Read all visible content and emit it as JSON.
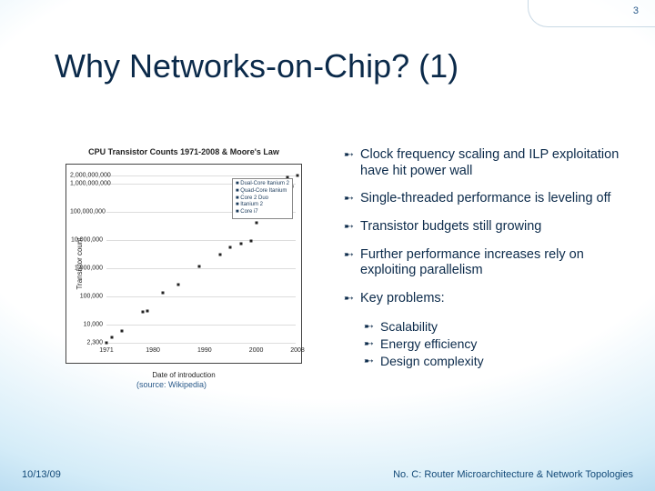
{
  "page_number": "3",
  "title": "Why Networks-on-Chip? (1)",
  "chart": {
    "type": "scatter",
    "title": "CPU Transistor Counts 1971-2008 & Moore's Law",
    "x_axis_label": "Date of introduction",
    "y_axis_label": "Transistor count",
    "x_ticks": [
      "1971",
      "1980",
      "1990",
      "2000",
      "2008"
    ],
    "y_ticks": [
      "2,300",
      "10,000",
      "100,000",
      "1,000,000",
      "10,000,000",
      "100,000,000",
      "1,000,000,000",
      "2,000,000,000"
    ],
    "y_log_min": 3.36,
    "y_log_max": 9.3,
    "x_min": 1971,
    "x_max": 2008,
    "points": [
      [
        1971,
        2300
      ],
      [
        1972,
        3500
      ],
      [
        1974,
        6000
      ],
      [
        1978,
        29000
      ],
      [
        1979,
        30000
      ],
      [
        1982,
        134000
      ],
      [
        1985,
        275000
      ],
      [
        1989,
        1180000
      ],
      [
        1993,
        3100000
      ],
      [
        1995,
        5500000
      ],
      [
        1997,
        7500000
      ],
      [
        1999,
        9500000
      ],
      [
        2000,
        42000000
      ],
      [
        2003,
        220000000
      ],
      [
        2004,
        592000000
      ],
      [
        2006,
        291000000
      ],
      [
        2006,
        1700000000
      ],
      [
        2007,
        790000000
      ],
      [
        2008,
        2000000000
      ]
    ],
    "legend": [
      "Dual-Core Itanium 2",
      "Quad-Core Itanium",
      "Core 2 Duo",
      "Itanium 2",
      "Core i7"
    ],
    "point_color": "#222222",
    "grid_color": "#dddddd",
    "background_color": "#ffffff"
  },
  "source_note": "(source: Wikipedia)",
  "bullets": [
    "Clock frequency scaling and ILP exploitation have hit power wall",
    "Single-threaded performance is leveling off",
    "Transistor budgets still growing",
    "Further performance increases rely on exploiting parallelism",
    "Key problems:"
  ],
  "sub_bullets": [
    "Scalability",
    "Energy efficiency",
    "Design complexity"
  ],
  "bullet_marker": "➸",
  "footer": {
    "date": "10/13/09",
    "title": "No. C: Router Microarchitecture & Network Topologies"
  },
  "colors": {
    "title": "#0b2a4a",
    "text": "#0b2a4a",
    "footer": "#134a78",
    "bg_center": "#ffffff",
    "bg_edge": "#5a9cd0"
  }
}
